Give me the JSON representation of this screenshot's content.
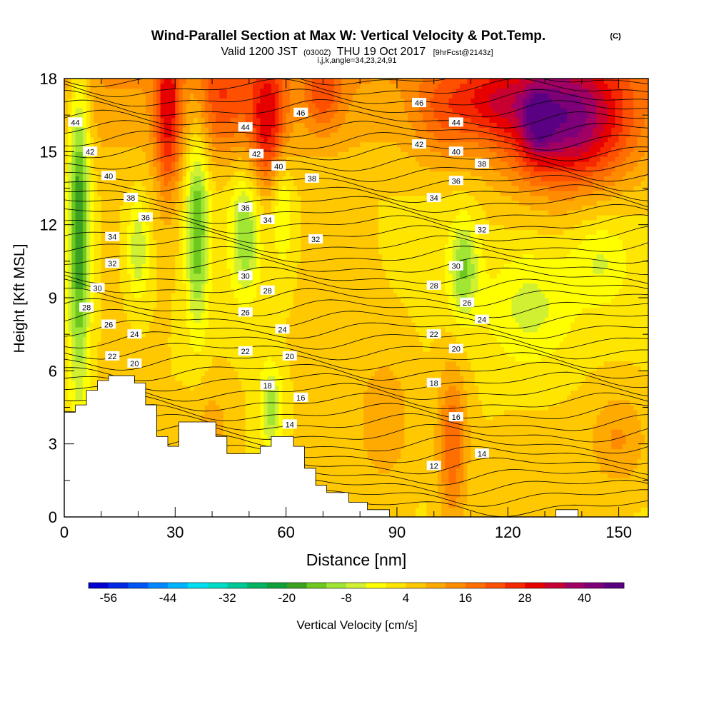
{
  "chart_data": {
    "type": "heatmap",
    "title": "Wind-Parallel Section at Max W: Vertical Velocity & Pot.Temp.",
    "title_mark": "(C)",
    "subtitle_parts": [
      "Valid 1200 JST",
      "(0300Z)",
      "THU 19 Oct 2017",
      "[9hrFcst@2143z]"
    ],
    "subtitle2": "i,j,k,angle=34,23,24,91",
    "xlabel": "Distance [nm]",
    "ylabel": "Height [Kft MSL]",
    "xlim": [
      0,
      158
    ],
    "ylim": [
      0,
      18
    ],
    "x_ticks": [
      0,
      30,
      60,
      90,
      120,
      150
    ],
    "y_ticks": [
      0,
      3,
      6,
      9,
      12,
      15,
      18
    ],
    "colorbar": {
      "label": "Vertical Velocity [cm/s]",
      "tick_labels": [
        "-56",
        "-44",
        "-32",
        "-20",
        "-8",
        "4",
        "16",
        "28",
        "40"
      ],
      "min": -60,
      "max": 48,
      "step": 4,
      "colors": [
        "#0000d0",
        "#0028e6",
        "#0055f5",
        "#0088ff",
        "#00b4ff",
        "#00e0f0",
        "#00dcc8",
        "#00c896",
        "#00b464",
        "#10a03a",
        "#3ca020",
        "#6ec81e",
        "#a0e632",
        "#d2f032",
        "#ffff00",
        "#ffe600",
        "#ffc800",
        "#ffaa00",
        "#ff8c00",
        "#ff6e00",
        "#ff5000",
        "#f52800",
        "#e60000",
        "#c80032",
        "#a00064",
        "#7d0078",
        "#5a0082"
      ]
    },
    "isentrope_labels": [
      {
        "x": 3,
        "y": 16.2,
        "text": "44"
      },
      {
        "x": 7,
        "y": 15.0,
        "text": "42"
      },
      {
        "x": 12,
        "y": 14.0,
        "text": "40"
      },
      {
        "x": 18,
        "y": 13.1,
        "text": "38"
      },
      {
        "x": 22,
        "y": 12.3,
        "text": "36"
      },
      {
        "x": 13,
        "y": 11.5,
        "text": "34"
      },
      {
        "x": 13,
        "y": 10.4,
        "text": "32"
      },
      {
        "x": 9,
        "y": 9.4,
        "text": "30"
      },
      {
        "x": 6,
        "y": 8.6,
        "text": "28"
      },
      {
        "x": 12,
        "y": 7.9,
        "text": "26"
      },
      {
        "x": 19,
        "y": 7.5,
        "text": "24"
      },
      {
        "x": 13,
        "y": 6.6,
        "text": "22"
      },
      {
        "x": 19,
        "y": 6.3,
        "text": "20"
      },
      {
        "x": 49,
        "y": 16.0,
        "text": "44"
      },
      {
        "x": 52,
        "y": 14.9,
        "text": "42"
      },
      {
        "x": 64,
        "y": 16.6,
        "text": "46"
      },
      {
        "x": 58,
        "y": 14.4,
        "text": "40"
      },
      {
        "x": 67,
        "y": 13.9,
        "text": "38"
      },
      {
        "x": 49,
        "y": 12.7,
        "text": "36"
      },
      {
        "x": 55,
        "y": 12.2,
        "text": "34"
      },
      {
        "x": 68,
        "y": 11.4,
        "text": "32"
      },
      {
        "x": 49,
        "y": 9.9,
        "text": "30"
      },
      {
        "x": 55,
        "y": 9.3,
        "text": "28"
      },
      {
        "x": 49,
        "y": 8.4,
        "text": "26"
      },
      {
        "x": 59,
        "y": 7.7,
        "text": "24"
      },
      {
        "x": 49,
        "y": 6.8,
        "text": "22"
      },
      {
        "x": 61,
        "y": 6.6,
        "text": "20"
      },
      {
        "x": 55,
        "y": 5.4,
        "text": "18"
      },
      {
        "x": 64,
        "y": 4.9,
        "text": "16"
      },
      {
        "x": 61,
        "y": 3.8,
        "text": "14"
      },
      {
        "x": 96,
        "y": 17.0,
        "text": "46"
      },
      {
        "x": 106,
        "y": 16.2,
        "text": "44"
      },
      {
        "x": 96,
        "y": 15.3,
        "text": "42"
      },
      {
        "x": 106,
        "y": 15.0,
        "text": "40"
      },
      {
        "x": 113,
        "y": 14.5,
        "text": "38"
      },
      {
        "x": 106,
        "y": 13.8,
        "text": "36"
      },
      {
        "x": 100,
        "y": 13.1,
        "text": "34"
      },
      {
        "x": 113,
        "y": 11.8,
        "text": "32"
      },
      {
        "x": 106,
        "y": 10.3,
        "text": "30"
      },
      {
        "x": 100,
        "y": 9.5,
        "text": "28"
      },
      {
        "x": 109,
        "y": 8.8,
        "text": "26"
      },
      {
        "x": 113,
        "y": 8.1,
        "text": "24"
      },
      {
        "x": 100,
        "y": 7.5,
        "text": "22"
      },
      {
        "x": 106,
        "y": 6.9,
        "text": "20"
      },
      {
        "x": 100,
        "y": 5.5,
        "text": "18"
      },
      {
        "x": 106,
        "y": 4.1,
        "text": "16"
      },
      {
        "x": 113,
        "y": 2.6,
        "text": "14"
      },
      {
        "x": 100,
        "y": 2.1,
        "text": "12"
      }
    ],
    "features": [
      {
        "x": 4,
        "y": 12,
        "dx": 3,
        "dy": 7,
        "w": -24
      },
      {
        "x": 20,
        "y": 11,
        "dx": 3,
        "dy": 2,
        "w": -12
      },
      {
        "x": 36,
        "y": 11.8,
        "dx": 3,
        "dy": 4,
        "w": -20
      },
      {
        "x": 49,
        "y": 11.6,
        "dx": 4,
        "dy": 2.5,
        "w": -16
      },
      {
        "x": 59,
        "y": 12.8,
        "dx": 3,
        "dy": 2.5,
        "w": -10
      },
      {
        "x": 56,
        "y": 4.5,
        "dx": 3,
        "dy": 1.8,
        "w": -14
      },
      {
        "x": 108,
        "y": 10.2,
        "dx": 4,
        "dy": 2,
        "w": -16
      },
      {
        "x": 126,
        "y": 8.6,
        "dx": 12,
        "dy": 2.5,
        "w": -10
      },
      {
        "x": 145,
        "y": 10.5,
        "dx": 8,
        "dy": 1.8,
        "w": -8
      },
      {
        "x": 136,
        "y": 16.3,
        "dx": 17,
        "dy": 2.7,
        "w": 34
      },
      {
        "x": 128,
        "y": 16.2,
        "dx": 4,
        "dy": 1.5,
        "w": 12
      },
      {
        "x": 115,
        "y": 17.1,
        "dx": 10,
        "dy": 1.5,
        "w": 14
      },
      {
        "x": 102,
        "y": 16.6,
        "dx": 8,
        "dy": 2,
        "w": 10
      },
      {
        "x": 28,
        "y": 16.6,
        "dx": 3.5,
        "dy": 3.5,
        "w": 22
      },
      {
        "x": 55,
        "y": 16.2,
        "dx": 5,
        "dy": 2.8,
        "w": 22
      },
      {
        "x": 43,
        "y": 17.1,
        "dx": 7,
        "dy": 2.2,
        "w": 14
      },
      {
        "x": 70,
        "y": 17.3,
        "dx": 5,
        "dy": 1.5,
        "w": 12
      },
      {
        "x": 105,
        "y": 3.0,
        "dx": 4,
        "dy": 3.2,
        "w": 16
      },
      {
        "x": 87,
        "y": 4.0,
        "dx": 8,
        "dy": 3,
        "w": 7
      },
      {
        "x": 150,
        "y": 3.2,
        "dx": 8,
        "dy": 2,
        "w": 9
      },
      {
        "x": 40,
        "y": 3.8,
        "dx": 6,
        "dy": 2,
        "w": 6
      }
    ],
    "terrain": [
      [
        0,
        4.3
      ],
      [
        3,
        4.3
      ],
      [
        3,
        4.6
      ],
      [
        6,
        4.6
      ],
      [
        6,
        5.2
      ],
      [
        9,
        5.2
      ],
      [
        9,
        5.6
      ],
      [
        12,
        5.6
      ],
      [
        12,
        5.8
      ],
      [
        19,
        5.8
      ],
      [
        19,
        5.5
      ],
      [
        22,
        5.5
      ],
      [
        22,
        4.6
      ],
      [
        25,
        4.6
      ],
      [
        25,
        3.3
      ],
      [
        28,
        3.3
      ],
      [
        28,
        2.9
      ],
      [
        31,
        2.9
      ],
      [
        31,
        3.9
      ],
      [
        41,
        3.9
      ],
      [
        41,
        3.3
      ],
      [
        44,
        3.3
      ],
      [
        44,
        2.6
      ],
      [
        53,
        2.6
      ],
      [
        53,
        2.9
      ],
      [
        56,
        2.9
      ],
      [
        56,
        3.3
      ],
      [
        62,
        3.3
      ],
      [
        62,
        2.9
      ],
      [
        65,
        2.9
      ],
      [
        65,
        2.0
      ],
      [
        68,
        2.0
      ],
      [
        68,
        1.3
      ],
      [
        71,
        1.3
      ],
      [
        71,
        1.0
      ],
      [
        77,
        1.0
      ],
      [
        77,
        0.6
      ],
      [
        82,
        0.6
      ],
      [
        82,
        0.3
      ],
      [
        88,
        0.3
      ],
      [
        88,
        0.0
      ],
      [
        133,
        0.0
      ],
      [
        133,
        0.3
      ],
      [
        139,
        0.3
      ],
      [
        139,
        0.0
      ],
      [
        158,
        0.0
      ]
    ]
  }
}
